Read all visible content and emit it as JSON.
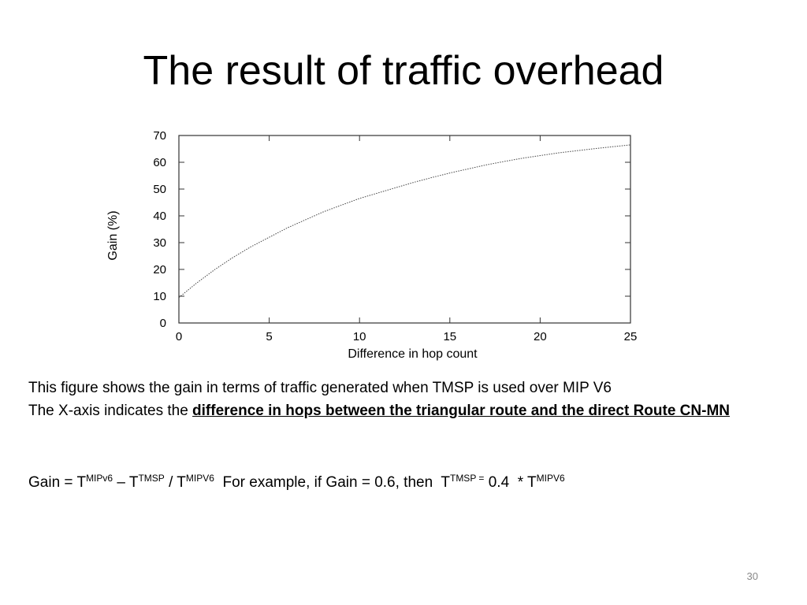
{
  "slide": {
    "title": "The result of traffic overhead",
    "page_number": "30"
  },
  "description": {
    "line1": "This figure shows the gain in terms of traffic generated when TMSP is used over MIP V6",
    "line2_prefix": "The X-axis indicates the ",
    "line2_emphasis": "difference in hops between the triangular route and the direct Route CN-MN"
  },
  "formula": {
    "gain_label": "Gain = T",
    "sup_mipv6_a": "MIPv6",
    "minus_t": " – T",
    "sup_tmsp_a": "TMSP",
    "slash_t": " / T",
    "sup_mipv6_b": "MIPV6",
    "example": "  For example, if Gain = 0.6, then  T",
    "sup_tmsp_b": "TMSP =",
    "value": " 0.4  * T",
    "sup_mipv6_c": "MIPV6"
  },
  "chart_data": {
    "type": "line",
    "title": "",
    "xlabel": "Difference in hop count",
    "ylabel": "Gain (%)",
    "xlim": [
      0,
      25
    ],
    "ylim": [
      0,
      70
    ],
    "xticks": [
      0,
      5,
      10,
      15,
      20,
      25
    ],
    "yticks": [
      0,
      10,
      20,
      30,
      40,
      50,
      60,
      70
    ],
    "grid": false,
    "line_style": "dotted",
    "series": [
      {
        "x": [
          0,
          1,
          2,
          3,
          4,
          5,
          6,
          7,
          8,
          9,
          10,
          11,
          12,
          13,
          14,
          15,
          16,
          17,
          18,
          19,
          20,
          21,
          22,
          23,
          24,
          25
        ],
        "values": [
          9.5,
          15,
          20,
          24.5,
          28.5,
          32,
          35.5,
          38.5,
          41.5,
          44,
          46.5,
          48.5,
          50.5,
          52.5,
          54.3,
          56,
          57.5,
          59,
          60.3,
          61.5,
          62.5,
          63.5,
          64.3,
          65.1,
          65.8,
          66.5
        ]
      }
    ]
  }
}
